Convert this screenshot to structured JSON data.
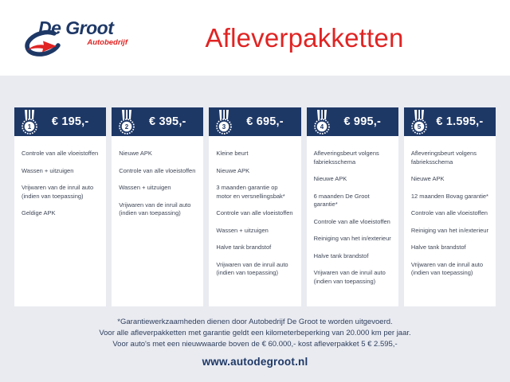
{
  "header": {
    "logo": {
      "name": "De Groot",
      "subtitle": "Autobedrijf"
    },
    "title": "Afleverpakketten"
  },
  "packages": [
    {
      "number": "1",
      "price": "€ 195,-",
      "items": [
        "Controle van alle vloeistoffen",
        "Wassen + uitzuigen",
        "Vrijwaren van de inruil auto (indien van toepassing)",
        "Geldige APK"
      ]
    },
    {
      "number": "2",
      "price": "€ 395,-",
      "items": [
        "Nieuwe APK",
        "Controle van alle vloeistoffen",
        "Wassen + uitzuigen",
        "Vrijwaren van de inruil auto (indien van toepassing)"
      ]
    },
    {
      "number": "3",
      "price": "€ 695,-",
      "items": [
        "Kleine beurt",
        "Nieuwe APK",
        "3 maanden garantie op motor en versnellingsbak*",
        "Controle van alle vloeistoffen",
        "Wassen + uitzuigen",
        "Halve tank brandstof",
        "Vrijwaren van de inruil auto (indien van toepassing)"
      ]
    },
    {
      "number": "4",
      "price": "€ 995,-",
      "items": [
        "Afleveringsbeurt volgens fabrieksschema",
        "Nieuwe APK",
        "6 maanden De Groot garantie*",
        "Controle van alle vloeistoffen",
        "Reiniging van het in/exterieur",
        "Halve tank brandstof",
        "Vrijwaren van de inruil auto (indien van toepassing)"
      ]
    },
    {
      "number": "5",
      "price": "€ 1.595,-",
      "items": [
        "Afleveringsbeurt volgens fabrieksschema",
        "Nieuwe APK",
        "12 maanden Bovag garantie*",
        "Controle van alle vloeistoffen",
        "Reiniging van het in/exterieur",
        "Halve tank brandstof",
        "Vrijwaren van de inruil auto (indien van toepassing)"
      ]
    }
  ],
  "footer": {
    "notes": [
      "*Garantiewerkzaamheden dienen door Autobedrijf De Groot te worden uitgevoerd.",
      "Voor alle afleverpakketten met garantie geldt een kilometerbeperking van 20.000 km per jaar.",
      "Voor auto's met een nieuwwaarde boven de € 60.000,- kost afleverpakket 5 € 2.595,-"
    ],
    "website": "www.autodegroot.nl"
  },
  "colors": {
    "navy": "#1e3866",
    "red": "#e02423",
    "background": "#e9ebf1",
    "body_text": "#3e4656"
  }
}
